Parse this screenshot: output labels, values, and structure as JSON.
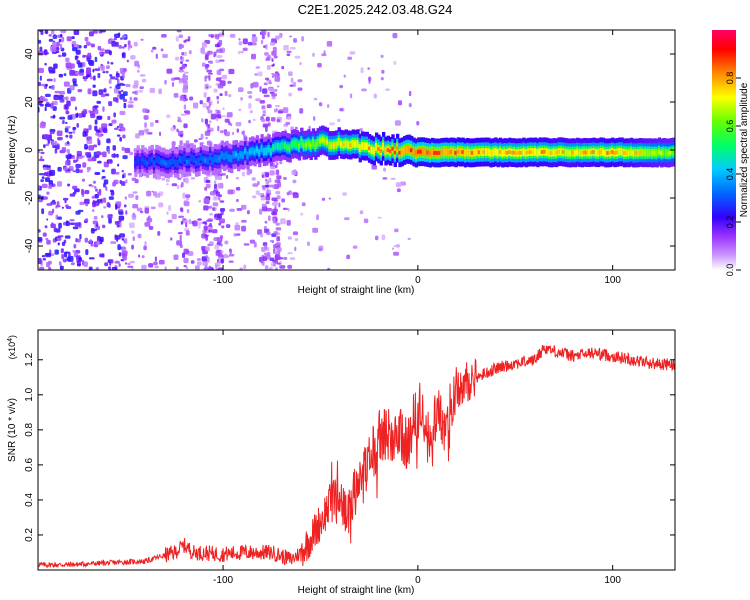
{
  "title": "C2E1.2025.242.03.48.G24",
  "chart_data": [
    {
      "type": "heatmap",
      "xlabel": "Height of straight line (km)",
      "ylabel": "Frequency (Hz)",
      "xlim": [
        -195,
        132
      ],
      "ylim": [
        -50,
        50
      ],
      "xticks": [
        -100,
        0,
        100
      ],
      "xtick_labels": [
        "-100",
        "0",
        "100"
      ],
      "yticks": [
        -40,
        -20,
        0,
        20,
        40
      ],
      "ytick_labels": [
        "-40",
        "-20",
        "0",
        "20",
        "40"
      ],
      "colorbar": {
        "label": "Normalized spectral amplitude",
        "ticks": [
          0.0,
          0.2,
          0.4,
          0.6,
          0.8
        ],
        "tick_labels": [
          "0.0",
          "0.2",
          "0.4",
          "0.6",
          "0.8"
        ],
        "range": [
          0,
          1
        ],
        "colormap": [
          "#ffffff",
          "#cc99ff",
          "#6600cc",
          "#0000ff",
          "#00ccff",
          "#00ff66",
          "#ffff00",
          "#ff8800",
          "#ff0000",
          "#ff0066"
        ]
      },
      "ridge": {
        "x": [
          -145,
          -130,
          -115,
          -100,
          -85,
          -70,
          -55,
          -40,
          -25,
          -10,
          0,
          20,
          40,
          60,
          80,
          100,
          120,
          132
        ],
        "y": [
          -4,
          -5,
          -4,
          -3,
          -1,
          1,
          3,
          3,
          1,
          0,
          -1,
          -1,
          -1,
          -1,
          -1,
          -1,
          -1,
          -1
        ],
        "peak_amplitude": [
          0.3,
          0.35,
          0.35,
          0.4,
          0.45,
          0.55,
          0.7,
          0.8,
          0.85,
          0.9,
          0.95,
          0.9,
          0.85,
          0.85,
          0.8,
          0.85,
          0.75,
          0.7
        ]
      }
    },
    {
      "type": "line",
      "xlabel": "Height of straight line (km)",
      "ylabel": "SNR (10 * v/v)",
      "yscale_label": "(x10",
      "yscale_exponent": "4",
      "xlim": [
        -195,
        132
      ],
      "ylim": [
        0,
        1.37
      ],
      "xticks": [
        -100,
        0,
        100
      ],
      "xtick_labels": [
        "-100",
        "0",
        "100"
      ],
      "yticks": [
        0.2,
        0.4,
        0.6,
        0.8,
        1.0,
        1.2
      ],
      "ytick_labels": [
        "0.2",
        "0.4",
        "0.6",
        "0.8",
        "1.0",
        "1.2"
      ],
      "color": "#ee2222",
      "series": [
        {
          "name": "SNR",
          "x": [
            -195,
            -180,
            -160,
            -140,
            -125,
            -120,
            -115,
            -100,
            -90,
            -75,
            -65,
            -60,
            -55,
            -50,
            -45,
            -40,
            -37,
            -34,
            -30,
            -25,
            -20,
            -15,
            -10,
            -5,
            0,
            5,
            10,
            15,
            20,
            30,
            40,
            50,
            60,
            65,
            70,
            80,
            90,
            100,
            110,
            120,
            132
          ],
          "y": [
            0.03,
            0.03,
            0.04,
            0.05,
            0.1,
            0.14,
            0.1,
            0.09,
            0.1,
            0.1,
            0.06,
            0.1,
            0.18,
            0.28,
            0.38,
            0.45,
            0.3,
            0.35,
            0.55,
            0.62,
            0.75,
            0.78,
            0.82,
            0.7,
            0.95,
            0.75,
            0.9,
            0.85,
            1.05,
            1.1,
            1.15,
            1.18,
            1.2,
            1.27,
            1.25,
            1.22,
            1.24,
            1.22,
            1.2,
            1.18,
            1.17
          ]
        }
      ]
    }
  ]
}
